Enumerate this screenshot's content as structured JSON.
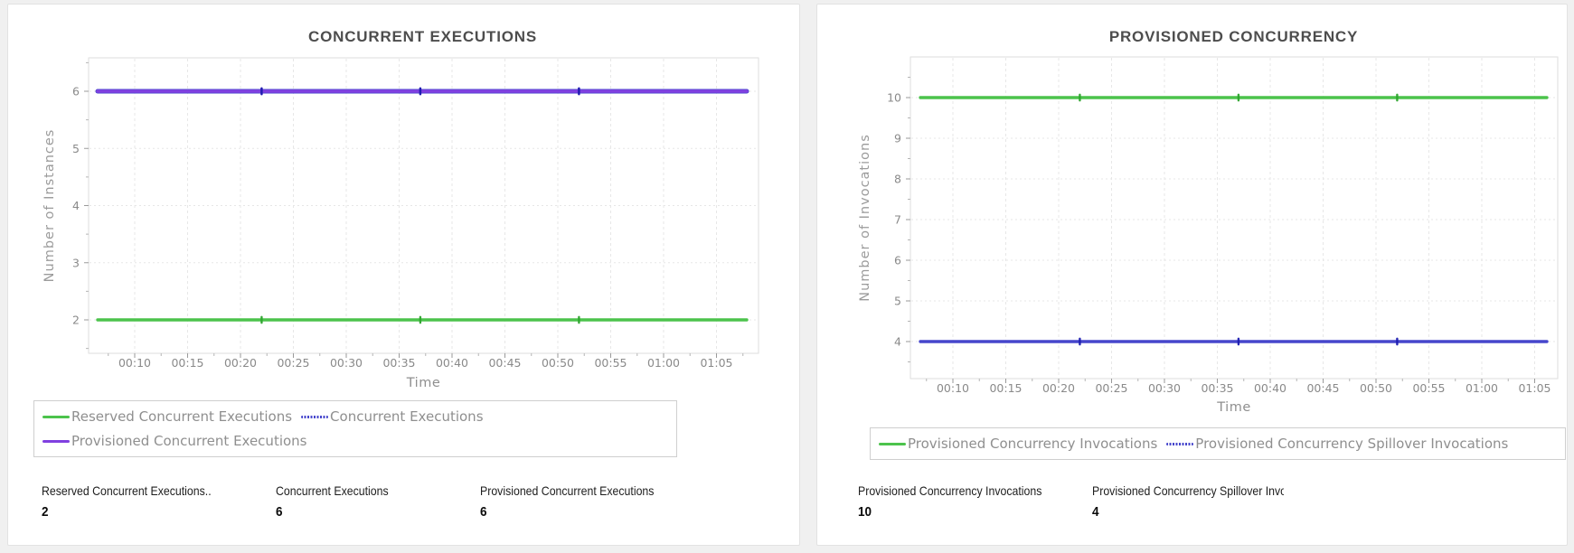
{
  "page": {
    "background": "#f0f0f0",
    "card_background": "#ffffff"
  },
  "colors": {
    "green": "#4cc34c",
    "blue": "#4646cc",
    "purple": "#8040e0",
    "grid": "#e7e7e7",
    "axis_border": "#dedede",
    "tick_label": "#8a8a8a",
    "title_text": "#4d4d4d",
    "legend_text": "#8f8f8f"
  },
  "chart_data": [
    {
      "type": "line",
      "title": "CONCURRENT EXECUTIONS",
      "xlabel": "Time",
      "ylabel": "Number of Instances",
      "x_ticks": [
        "00:10",
        "00:15",
        "00:20",
        "00:25",
        "00:30",
        "00:35",
        "00:40",
        "00:45",
        "00:50",
        "00:55",
        "01:00",
        "01:05"
      ],
      "y_ticks": [
        6,
        5,
        4,
        3,
        2
      ],
      "grid": true,
      "legend_position": "bottom",
      "marker_times": [
        "00:22",
        "00:37",
        "00:52"
      ],
      "series": [
        {
          "name": "Reserved Concurrent Executions",
          "value": 2,
          "color": "#4cc34c",
          "marker_color": "#2da52d",
          "swatch": "solid"
        },
        {
          "name": "Concurrent Executions",
          "value": 6,
          "color": "#4646cc",
          "marker_color": "#1c1cb0",
          "swatch": "dotted"
        },
        {
          "name": "Provisioned Concurrent Executions",
          "value": 6,
          "color": "#8040e0",
          "marker_color": "#6a2fd0",
          "swatch": "solid"
        }
      ],
      "stats": [
        {
          "label": "Reserved Concurrent Executions..",
          "value": "2"
        },
        {
          "label": "Concurrent Executions",
          "value": "6"
        },
        {
          "label": "Provisioned Concurrent Executions",
          "value": "6"
        }
      ]
    },
    {
      "type": "line",
      "title": "PROVISIONED CONCURRENCY",
      "xlabel": "Time",
      "ylabel": "Number of Invocations",
      "x_ticks": [
        "00:10",
        "00:15",
        "00:20",
        "00:25",
        "00:30",
        "00:35",
        "00:40",
        "00:45",
        "00:50",
        "00:55",
        "01:00",
        "01:05"
      ],
      "y_ticks": [
        10,
        9,
        8,
        7,
        6,
        5,
        4
      ],
      "grid": true,
      "legend_position": "bottom",
      "marker_times": [
        "00:22",
        "00:37",
        "00:52"
      ],
      "series": [
        {
          "name": "Provisioned Concurrency Invocations",
          "value": 10,
          "color": "#4cc34c",
          "marker_color": "#2da52d",
          "swatch": "solid"
        },
        {
          "name": "Provisioned Concurrency Spillover Invocations",
          "value": 4,
          "color": "#4646cc",
          "marker_color": "#1c1cb0",
          "swatch": "dotted"
        }
      ],
      "stats": [
        {
          "label": "Provisioned Concurrency Invocations",
          "value": "10"
        },
        {
          "label": "Provisioned Concurrency Spillover Invocations",
          "value": "4"
        }
      ]
    }
  ]
}
